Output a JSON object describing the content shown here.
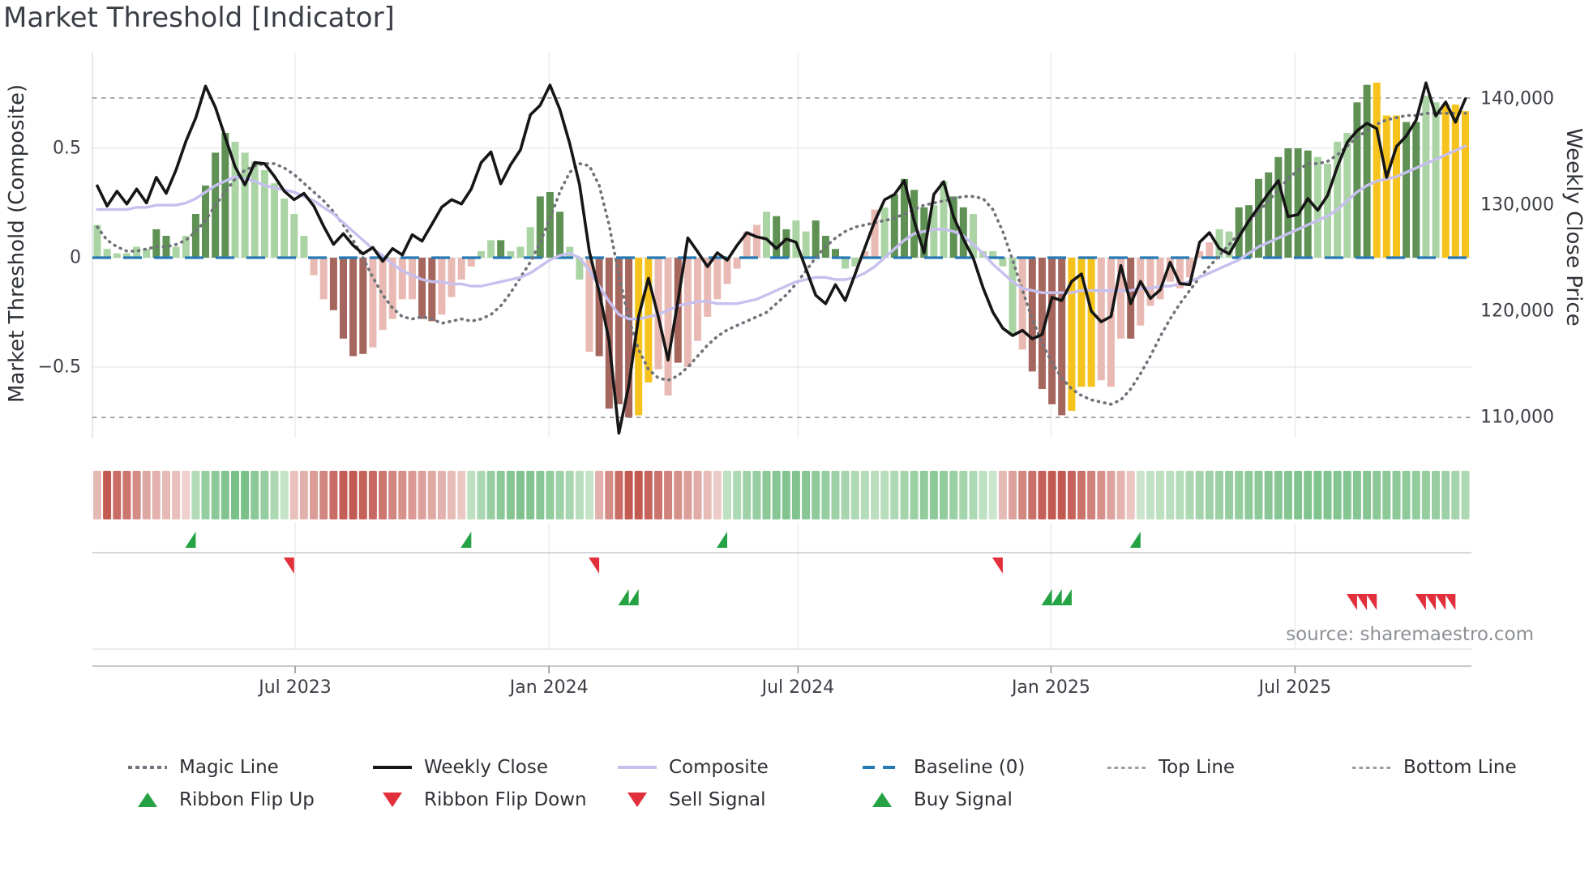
{
  "title": "Market Threshold [Indicator]",
  "source_note": "source: sharemaestro.com",
  "axes": {
    "left_label": "Market Threshold (Composite)",
    "right_label": "Weekly Close Price",
    "left_tick_labels": [
      "0.5",
      "0",
      "−0.5"
    ],
    "left_tick_values": [
      0.5,
      0,
      -0.5
    ],
    "right_tick_labels": [
      "140,000",
      "130,000",
      "120,000",
      "110,000"
    ],
    "right_tick_values_thousands": [
      140,
      130,
      120,
      110
    ]
  },
  "legend": {
    "row1": [
      {
        "label": "Magic Line",
        "swatch": "magic"
      },
      {
        "label": "Weekly Close",
        "swatch": "black"
      },
      {
        "label": "Composite",
        "swatch": "lav"
      },
      {
        "label": "Baseline (0)",
        "swatch": "base"
      },
      {
        "label": "Top Line",
        "swatch": "dots"
      },
      {
        "label": "Bottom Line",
        "swatch": "dots"
      }
    ],
    "row2": [
      {
        "label": "Ribbon Flip Up",
        "swatch": "triu"
      },
      {
        "label": "Ribbon Flip Down",
        "swatch": "trid"
      },
      {
        "label": "Sell Signal",
        "swatch": "trid"
      },
      {
        "label": "Buy Signal",
        "swatch": "triu"
      }
    ]
  },
  "colors": {
    "bar_dark_green": "#5f9155",
    "bar_light_green": "#abd4a4",
    "bar_dark_red": "#a5665e",
    "bar_light_red": "#e9bab3",
    "bar_signal_gold": "#f6c31c",
    "weekly_close": "#161616",
    "composite_line": "#c7c0ef",
    "magic_line": "#6f7379",
    "baseline": "#2679b4",
    "threshold_lines": "#9a9ea3",
    "signal_green": "#25a244",
    "signal_red": "#e12f3b",
    "ribbon_red_strong": "#bc4a42",
    "ribbon_red_faint": "#f7e8e5",
    "ribbon_green_strong": "#57b06c",
    "ribbon_green_faint": "#e4f2e1",
    "grid": "#e9ecef",
    "axis_text": "#3d4147",
    "title_text": "#3a3e46",
    "source_text": "#8d9196"
  },
  "chart_data": {
    "type": "bar+line",
    "description": "140 weekly observations, Feb 2023 - Oct 2025. Bars = Market Threshold composite histogram (left axis). Lines = Weekly Close price (right axis, thousands), Composite smooth line and Magic Line (left axis). Gold bars mark buy/sell signal weeks.",
    "n_weeks": 140,
    "x_ticks": [
      {
        "label": "Jul 2023",
        "i": 20.1
      },
      {
        "label": "Jan 2024",
        "i": 45.9
      },
      {
        "label": "Jul 2024",
        "i": 71.2
      },
      {
        "label": "Jan 2025",
        "i": 96.9
      },
      {
        "label": "Jul 2025",
        "i": 121.7
      }
    ],
    "ylim_left": [
      -0.94,
      0.94
    ],
    "ylim_right_thousands": [
      105.7,
      144.4
    ],
    "baseline": 0,
    "top_line": 0.73,
    "bottom_line": -0.73,
    "grid": "on",
    "legend_position": "bottom",
    "bars": {
      "classes": "llllllggllggggllllllllpprrrrppppprrppppllglllgggllprrrryypprpppppppplggllgggllpplggggllgglllllprrrryyyppprppppppppllggggggggllllggyyyggllyyyyl",
      "class_key": {
        "g": "dark_green",
        "l": "light_green",
        "r": "dark_red",
        "p": "light_red",
        "y": "signal_gold"
      },
      "values": [
        0.15,
        0.04,
        0.02,
        0.02,
        0.05,
        0.04,
        0.13,
        0.1,
        0.05,
        0.1,
        0.2,
        0.33,
        0.48,
        0.57,
        0.53,
        0.48,
        0.44,
        0.4,
        0.34,
        0.27,
        0.2,
        0.1,
        -0.08,
        -0.19,
        -0.24,
        -0.37,
        -0.45,
        -0.44,
        -0.41,
        -0.33,
        -0.28,
        -0.19,
        -0.19,
        -0.28,
        -0.29,
        -0.26,
        -0.18,
        -0.1,
        -0.04,
        0.03,
        0.08,
        0.08,
        0.03,
        0.05,
        0.14,
        0.28,
        0.3,
        0.21,
        0.05,
        -0.1,
        -0.43,
        -0.45,
        -0.69,
        -0.67,
        -0.73,
        -0.72,
        -0.57,
        -0.51,
        -0.63,
        -0.48,
        -0.5,
        -0.38,
        -0.27,
        -0.19,
        -0.12,
        -0.05,
        0.12,
        0.15,
        0.21,
        0.19,
        0.13,
        0.17,
        0.12,
        0.17,
        0.1,
        0.04,
        -0.05,
        -0.04,
        0.03,
        0.22,
        0.23,
        0.29,
        0.36,
        0.31,
        0.23,
        0.24,
        0.35,
        0.28,
        0.23,
        0.2,
        0.03,
        0.03,
        -0.04,
        -0.35,
        -0.42,
        -0.52,
        -0.6,
        -0.67,
        -0.72,
        -0.7,
        -0.59,
        -0.59,
        -0.56,
        -0.59,
        -0.37,
        -0.37,
        -0.31,
        -0.22,
        -0.19,
        -0.11,
        -0.14,
        -0.09,
        0.03,
        0.07,
        0.13,
        0.12,
        0.23,
        0.24,
        0.36,
        0.39,
        0.46,
        0.5,
        0.5,
        0.49,
        0.46,
        0.43,
        0.53,
        0.57,
        0.71,
        0.79,
        0.8,
        0.65,
        0.65,
        0.62,
        0.62,
        0.74,
        0.71,
        0.7,
        0.7,
        0.67
      ]
    },
    "weekly_close_thousands": [
      131.8,
      129.9,
      131.3,
      130.1,
      131.5,
      130.2,
      132.6,
      131.1,
      133.3,
      136.0,
      138.2,
      141.2,
      139.2,
      136.4,
      133.6,
      131.9,
      134.0,
      133.9,
      132.7,
      131.3,
      130.5,
      131.1,
      129.9,
      128.0,
      126.3,
      127.3,
      126.2,
      125.4,
      126.0,
      124.7,
      125.9,
      125.3,
      127.2,
      126.6,
      128.2,
      129.8,
      130.5,
      130.1,
      131.5,
      134.0,
      135.0,
      132.0,
      133.8,
      135.2,
      138.5,
      139.4,
      141.3,
      139.0,
      135.8,
      131.9,
      125.6,
      121.8,
      117.2,
      108.5,
      113.0,
      119.5,
      123.1,
      119.5,
      115.4,
      121.0,
      126.9,
      125.6,
      124.2,
      125.5,
      124.8,
      126.2,
      127.4,
      127.0,
      126.8,
      125.9,
      126.8,
      126.5,
      124.0,
      121.5,
      120.7,
      122.5,
      121.0,
      123.5,
      126.0,
      128.5,
      130.5,
      131.0,
      132.3,
      128.5,
      125.5,
      131.0,
      132.2,
      128.9,
      126.8,
      125.0,
      122.2,
      119.9,
      118.4,
      117.7,
      118.2,
      117.4,
      117.8,
      121.3,
      121.0,
      122.8,
      123.5,
      120.0,
      119.0,
      119.5,
      124.3,
      120.7,
      122.8,
      121.2,
      122.0,
      124.6,
      122.6,
      122.5,
      126.5,
      127.4,
      125.9,
      125.4,
      127.0,
      128.5,
      129.8,
      131.1,
      132.3,
      128.9,
      129.1,
      130.6,
      129.5,
      130.9,
      133.6,
      135.9,
      137.0,
      137.7,
      137.2,
      132.6,
      135.5,
      136.5,
      138.0,
      141.5,
      138.4,
      139.7,
      137.8,
      140.0
    ],
    "composite": [
      0.22,
      0.22,
      0.22,
      0.22,
      0.23,
      0.23,
      0.24,
      0.24,
      0.24,
      0.25,
      0.27,
      0.3,
      0.33,
      0.35,
      0.37,
      0.36,
      0.35,
      0.33,
      0.32,
      0.31,
      0.3,
      0.28,
      0.26,
      0.23,
      0.2,
      0.16,
      0.12,
      0.08,
      0.04,
      0.01,
      -0.03,
      -0.06,
      -0.08,
      -0.1,
      -0.11,
      -0.11,
      -0.12,
      -0.12,
      -0.13,
      -0.13,
      -0.12,
      -0.11,
      -0.1,
      -0.09,
      -0.07,
      -0.04,
      -0.01,
      0.01,
      0.02,
      0.0,
      -0.06,
      -0.13,
      -0.2,
      -0.26,
      -0.28,
      -0.28,
      -0.27,
      -0.26,
      -0.24,
      -0.22,
      -0.21,
      -0.2,
      -0.2,
      -0.21,
      -0.21,
      -0.21,
      -0.2,
      -0.19,
      -0.17,
      -0.15,
      -0.13,
      -0.11,
      -0.1,
      -0.09,
      -0.09,
      -0.1,
      -0.1,
      -0.09,
      -0.07,
      -0.04,
      0.0,
      0.04,
      0.08,
      0.11,
      0.12,
      0.13,
      0.13,
      0.12,
      0.1,
      0.06,
      0.02,
      -0.03,
      -0.07,
      -0.11,
      -0.14,
      -0.15,
      -0.16,
      -0.16,
      -0.16,
      -0.16,
      -0.15,
      -0.15,
      -0.15,
      -0.15,
      -0.15,
      -0.15,
      -0.14,
      -0.14,
      -0.13,
      -0.13,
      -0.12,
      -0.11,
      -0.09,
      -0.07,
      -0.05,
      -0.03,
      -0.01,
      0.02,
      0.05,
      0.07,
      0.09,
      0.11,
      0.13,
      0.15,
      0.17,
      0.19,
      0.22,
      0.26,
      0.3,
      0.33,
      0.35,
      0.36,
      0.37,
      0.39,
      0.41,
      0.43,
      0.45,
      0.47,
      0.49,
      0.51
    ],
    "magic_line": [
      0.14,
      0.08,
      0.05,
      0.03,
      0.03,
      0.04,
      0.05,
      0.05,
      0.06,
      0.08,
      0.12,
      0.17,
      0.24,
      0.3,
      0.36,
      0.4,
      0.42,
      0.43,
      0.43,
      0.41,
      0.38,
      0.34,
      0.3,
      0.26,
      0.21,
      0.15,
      0.08,
      0.0,
      -0.09,
      -0.17,
      -0.23,
      -0.27,
      -0.28,
      -0.27,
      -0.28,
      -0.3,
      -0.29,
      -0.28,
      -0.29,
      -0.28,
      -0.26,
      -0.22,
      -0.16,
      -0.09,
      -0.02,
      0.07,
      0.18,
      0.3,
      0.39,
      0.43,
      0.42,
      0.33,
      0.15,
      -0.08,
      -0.28,
      -0.42,
      -0.51,
      -0.55,
      -0.56,
      -0.54,
      -0.5,
      -0.45,
      -0.4,
      -0.36,
      -0.33,
      -0.31,
      -0.29,
      -0.27,
      -0.25,
      -0.21,
      -0.17,
      -0.12,
      -0.06,
      0.0,
      0.05,
      0.09,
      0.12,
      0.14,
      0.15,
      0.16,
      0.17,
      0.18,
      0.2,
      0.22,
      0.24,
      0.25,
      0.26,
      0.27,
      0.28,
      0.28,
      0.27,
      0.22,
      0.12,
      -0.01,
      -0.15,
      -0.28,
      -0.39,
      -0.48,
      -0.55,
      -0.6,
      -0.63,
      -0.65,
      -0.66,
      -0.67,
      -0.65,
      -0.6,
      -0.53,
      -0.45,
      -0.36,
      -0.28,
      -0.21,
      -0.15,
      -0.09,
      -0.04,
      0.01,
      0.06,
      0.11,
      0.16,
      0.21,
      0.26,
      0.31,
      0.36,
      0.4,
      0.43,
      0.43,
      0.44,
      0.47,
      0.51,
      0.55,
      0.58,
      0.61,
      0.63,
      0.64,
      0.65,
      0.65,
      0.66,
      0.66,
      0.66,
      0.66,
      0.66
    ],
    "ribbon": {
      "state": "rrrrrrrrrrggggggggggrrrrrrrrrrrrrrrrrrgggggggggggggrrrrrrrrrrrrrggggggggggggggggggggggggggggrrrrrrrrrrrrrrgggggggggggggggggggggggggggggggggg",
      "intensity": [
        0.3,
        0.9,
        0.78,
        0.72,
        0.58,
        0.42,
        0.34,
        0.3,
        0.26,
        0.15,
        0.35,
        0.55,
        0.62,
        0.7,
        0.75,
        0.75,
        0.62,
        0.55,
        0.4,
        0.22,
        0.25,
        0.35,
        0.48,
        0.62,
        0.78,
        0.88,
        0.9,
        0.85,
        0.8,
        0.72,
        0.62,
        0.55,
        0.5,
        0.45,
        0.4,
        0.34,
        0.28,
        0.2,
        0.28,
        0.42,
        0.55,
        0.62,
        0.68,
        0.72,
        0.7,
        0.65,
        0.58,
        0.5,
        0.42,
        0.32,
        0.22,
        0.35,
        0.58,
        0.78,
        0.9,
        0.9,
        0.84,
        0.74,
        0.64,
        0.55,
        0.46,
        0.38,
        0.28,
        0.18,
        0.28,
        0.38,
        0.48,
        0.55,
        0.62,
        0.66,
        0.7,
        0.7,
        0.66,
        0.6,
        0.55,
        0.5,
        0.44,
        0.38,
        0.34,
        0.3,
        0.32,
        0.38,
        0.45,
        0.52,
        0.58,
        0.6,
        0.58,
        0.52,
        0.46,
        0.38,
        0.28,
        0.18,
        0.3,
        0.45,
        0.62,
        0.76,
        0.86,
        0.9,
        0.9,
        0.84,
        0.75,
        0.65,
        0.55,
        0.44,
        0.33,
        0.22,
        0.18,
        0.24,
        0.28,
        0.3,
        0.34,
        0.4,
        0.45,
        0.5,
        0.52,
        0.55,
        0.56,
        0.6,
        0.62,
        0.65,
        0.66,
        0.68,
        0.7,
        0.7,
        0.7,
        0.7,
        0.68,
        0.68,
        0.66,
        0.66,
        0.64,
        0.62,
        0.62,
        0.6,
        0.58,
        0.56,
        0.54,
        0.5,
        0.46,
        0.4
      ]
    },
    "signals": {
      "ribbon_flip_up_weeks": [
        10,
        38,
        64,
        106
      ],
      "ribbon_flip_down_weeks": [
        20,
        51,
        92
      ],
      "buy_signal_weeks": [
        54,
        55,
        97,
        98,
        99
      ],
      "sell_signal_weeks": [
        128,
        129,
        130,
        135,
        136,
        137,
        138
      ]
    }
  }
}
